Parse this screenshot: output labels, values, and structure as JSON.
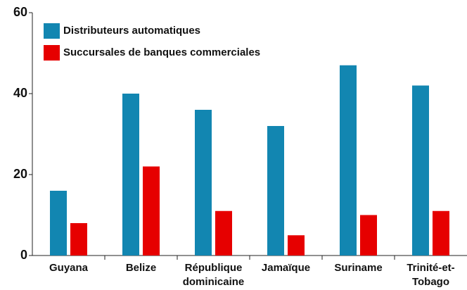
{
  "chart_data": {
    "type": "bar",
    "categories": [
      "Guyana",
      "Belize",
      "République dominicaine",
      "Jamaïque",
      "Suriname",
      "Trinité-et-Tobago"
    ],
    "series": [
      {
        "name": "Distributeurs automatiques",
        "color": "#1286b1",
        "values": [
          16,
          40,
          36,
          32,
          47,
          42
        ]
      },
      {
        "name": "Succursales de banques commerciales",
        "color": "#e60000",
        "values": [
          8,
          22,
          11,
          5,
          10,
          11
        ]
      }
    ],
    "ylim": [
      0,
      60
    ],
    "yticks": [
      0,
      20,
      40,
      60
    ],
    "legend": "upper left"
  }
}
